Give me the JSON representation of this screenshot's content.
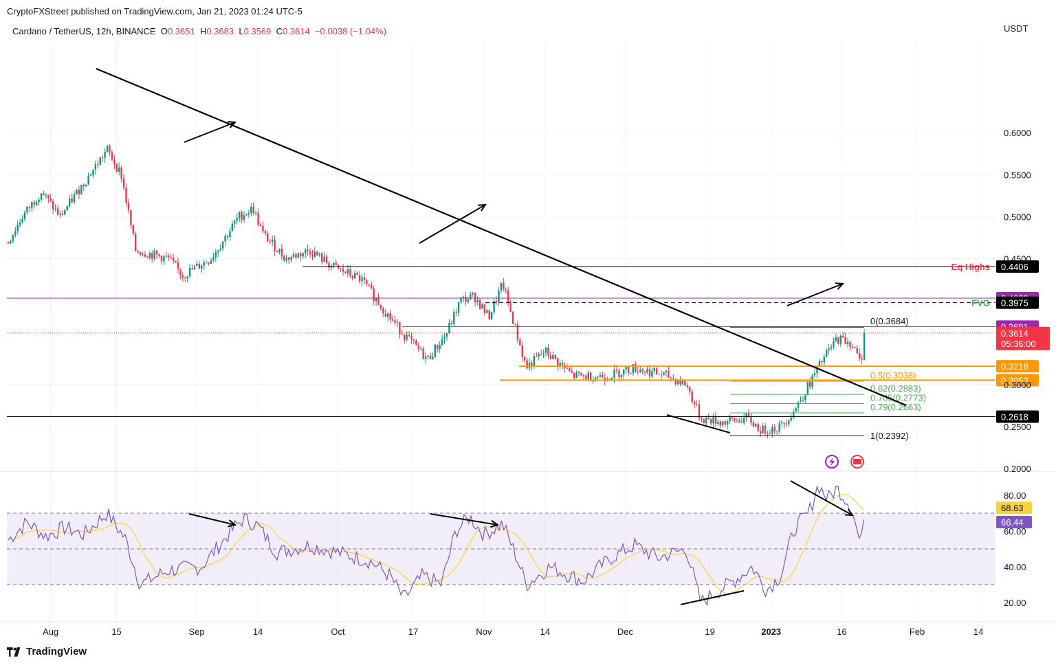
{
  "header": {
    "published": "CryptoFXStreet published on TradingView.com, Jan 21, 2023 01:24 UTC-5"
  },
  "symbol": {
    "name": "Cardano / TetherUS, 12h, BINANCE",
    "o_label": "O",
    "o": "0.3651",
    "h_label": "H",
    "h": "0.3683",
    "l_label": "L",
    "l": "0.3569",
    "c_label": "C",
    "c": "0.3614",
    "change": "−0.0038 (−1.04%)"
  },
  "price_unit": "USDT",
  "footer": {
    "brand": "TradingView"
  },
  "colors": {
    "up": "#089981",
    "down": "#f23645",
    "rsi": "#7e57c2",
    "rsi_ma": "#f7d23e",
    "fib_orange": "#ff9800",
    "fib_green": "#4caf50",
    "fvg": "#4caf50",
    "eq_highs": "#f23645",
    "purple_line": "#9c27b0"
  },
  "chart_data": [
    {
      "type": "candlestick",
      "title": "",
      "y_axis": {
        "ticks": [
          "0.6000",
          "0.5500",
          "0.5000",
          "0.4500",
          "0.3000",
          "0.2500",
          "0.2000"
        ],
        "range": [
          0.19,
          0.62
        ]
      },
      "x_axis": {
        "ticks": [
          "Aug",
          "15",
          "Sep",
          "14",
          "Oct",
          "17",
          "Nov",
          "14",
          "Dec",
          "19",
          "2023",
          "16",
          "Feb",
          "14"
        ]
      },
      "anchors": [
        {
          "date": "2022-07-23",
          "price": 0.47
        },
        {
          "date": "2022-07-26",
          "price": 0.5
        },
        {
          "date": "2022-07-30",
          "price": 0.53
        },
        {
          "date": "2022-08-03",
          "price": 0.5
        },
        {
          "date": "2022-08-08",
          "price": 0.54
        },
        {
          "date": "2022-08-13",
          "price": 0.58
        },
        {
          "date": "2022-08-16",
          "price": 0.55
        },
        {
          "date": "2022-08-19",
          "price": 0.46
        },
        {
          "date": "2022-08-26",
          "price": 0.45
        },
        {
          "date": "2022-08-29",
          "price": 0.43
        },
        {
          "date": "2022-09-04",
          "price": 0.45
        },
        {
          "date": "2022-09-10",
          "price": 0.5
        },
        {
          "date": "2022-09-13",
          "price": 0.51
        },
        {
          "date": "2022-09-15",
          "price": 0.48
        },
        {
          "date": "2022-09-20",
          "price": 0.45
        },
        {
          "date": "2022-09-25",
          "price": 0.46
        },
        {
          "date": "2022-09-30",
          "price": 0.44
        },
        {
          "date": "2022-10-06",
          "price": 0.425
        },
        {
          "date": "2022-10-12",
          "price": 0.38
        },
        {
          "date": "2022-10-15",
          "price": 0.36
        },
        {
          "date": "2022-10-20",
          "price": 0.33
        },
        {
          "date": "2022-10-24",
          "price": 0.36
        },
        {
          "date": "2022-10-27",
          "price": 0.4
        },
        {
          "date": "2022-10-30",
          "price": 0.405
        },
        {
          "date": "2022-11-02",
          "price": 0.38
        },
        {
          "date": "2022-11-05",
          "price": 0.42
        },
        {
          "date": "2022-11-08",
          "price": 0.36
        },
        {
          "date": "2022-11-10",
          "price": 0.32
        },
        {
          "date": "2022-11-14",
          "price": 0.34
        },
        {
          "date": "2022-11-20",
          "price": 0.31
        },
        {
          "date": "2022-11-27",
          "price": 0.31
        },
        {
          "date": "2022-12-03",
          "price": 0.32
        },
        {
          "date": "2022-12-10",
          "price": 0.31
        },
        {
          "date": "2022-12-14",
          "price": 0.3
        },
        {
          "date": "2022-12-17",
          "price": 0.26
        },
        {
          "date": "2022-12-22",
          "price": 0.255
        },
        {
          "date": "2022-12-27",
          "price": 0.26
        },
        {
          "date": "2022-12-30",
          "price": 0.245
        },
        {
          "date": "2023-01-03",
          "price": 0.25
        },
        {
          "date": "2023-01-06",
          "price": 0.27
        },
        {
          "date": "2023-01-09",
          "price": 0.3
        },
        {
          "date": "2023-01-12",
          "price": 0.33
        },
        {
          "date": "2023-01-15",
          "price": 0.355
        },
        {
          "date": "2023-01-18",
          "price": 0.35
        },
        {
          "date": "2023-01-20",
          "price": 0.325
        },
        {
          "date": "2023-01-21",
          "price": 0.3614
        }
      ],
      "levels": [
        {
          "price": 0.4406,
          "tag": "0.4406",
          "label": "Eq Highs",
          "color": "#000000"
        },
        {
          "price": 0.4029,
          "tag": "0.4029",
          "color": "#9c27b0"
        },
        {
          "price": 0.3975,
          "tag": "0.3975",
          "label": "FVG",
          "color": "#000000",
          "dashed": true
        },
        {
          "price": 0.3691,
          "tag": "0.3691",
          "color": "#9c27b0"
        },
        {
          "price": 0.3218,
          "tag": "0.3218",
          "color": "#ff9800"
        },
        {
          "price": 0.3053,
          "tag": "0.3053",
          "color": "#ff9800"
        },
        {
          "price": 0.2618,
          "tag": "0.2618",
          "color": "#000000"
        }
      ],
      "fib": [
        {
          "level": "0(0.3684)",
          "price": 0.3684
        },
        {
          "level": "0.5(0.3038)",
          "price": 0.3038
        },
        {
          "level": "0.62(0.2883)",
          "price": 0.2883
        },
        {
          "level": "0.705(0.2773)",
          "price": 0.2773
        },
        {
          "level": "0.79(0.2663)",
          "price": 0.2663
        },
        {
          "level": "1(0.2392)",
          "price": 0.2392
        }
      ],
      "last_price": {
        "value": "0.3614",
        "countdown": "05:36:00"
      }
    },
    {
      "type": "line",
      "title": "",
      "y_axis": {
        "ticks": [
          "80.00",
          "60.00",
          "40.00",
          "20.00"
        ],
        "range": [
          15,
          90
        ],
        "band": [
          30,
          70
        ],
        "mid": 50
      },
      "series": [
        {
          "anchors": [
            {
              "date": "2022-07-23",
              "value": 55
            },
            {
              "date": "2022-07-27",
              "value": 65
            },
            {
              "date": "2022-07-31",
              "value": 57
            },
            {
              "date": "2022-08-04",
              "value": 62
            },
            {
              "date": "2022-08-08",
              "value": 58
            },
            {
              "date": "2022-08-13",
              "value": 70
            },
            {
              "date": "2022-08-17",
              "value": 55
            },
            {
              "date": "2022-08-20",
              "value": 30
            },
            {
              "date": "2022-08-26",
              "value": 38
            },
            {
              "date": "2022-09-02",
              "value": 40
            },
            {
              "date": "2022-09-09",
              "value": 62
            },
            {
              "date": "2022-09-11",
              "value": 67
            },
            {
              "date": "2022-09-14",
              "value": 63
            },
            {
              "date": "2022-09-18",
              "value": 48
            },
            {
              "date": "2022-09-25",
              "value": 52
            },
            {
              "date": "2022-10-01",
              "value": 48
            },
            {
              "date": "2022-10-08",
              "value": 43
            },
            {
              "date": "2022-10-12",
              "value": 35
            },
            {
              "date": "2022-10-15",
              "value": 22
            },
            {
              "date": "2022-10-19",
              "value": 35
            },
            {
              "date": "2022-10-23",
              "value": 30
            },
            {
              "date": "2022-10-26",
              "value": 60
            },
            {
              "date": "2022-10-29",
              "value": 68
            },
            {
              "date": "2022-11-01",
              "value": 58
            },
            {
              "date": "2022-11-05",
              "value": 64
            },
            {
              "date": "2022-11-08",
              "value": 45
            },
            {
              "date": "2022-11-10",
              "value": 30
            },
            {
              "date": "2022-11-15",
              "value": 40
            },
            {
              "date": "2022-11-22",
              "value": 32
            },
            {
              "date": "2022-11-28",
              "value": 45
            },
            {
              "date": "2022-12-03",
              "value": 52
            },
            {
              "date": "2022-12-08",
              "value": 45
            },
            {
              "date": "2022-12-14",
              "value": 50
            },
            {
              "date": "2022-12-17",
              "value": 20
            },
            {
              "date": "2022-12-24",
              "value": 32
            },
            {
              "date": "2022-12-28",
              "value": 40
            },
            {
              "date": "2022-12-31",
              "value": 27
            },
            {
              "date": "2023-01-03",
              "value": 35
            },
            {
              "date": "2023-01-06",
              "value": 62
            },
            {
              "date": "2023-01-09",
              "value": 70
            },
            {
              "date": "2023-01-11",
              "value": 86
            },
            {
              "date": "2023-01-13",
              "value": 78
            },
            {
              "date": "2023-01-15",
              "value": 84
            },
            {
              "date": "2023-01-18",
              "value": 74
            },
            {
              "date": "2023-01-20",
              "value": 52
            },
            {
              "date": "2023-01-21",
              "value": 66.44
            }
          ],
          "last": "66.44"
        },
        {
          "ma_last": "68.63"
        }
      ]
    }
  ]
}
